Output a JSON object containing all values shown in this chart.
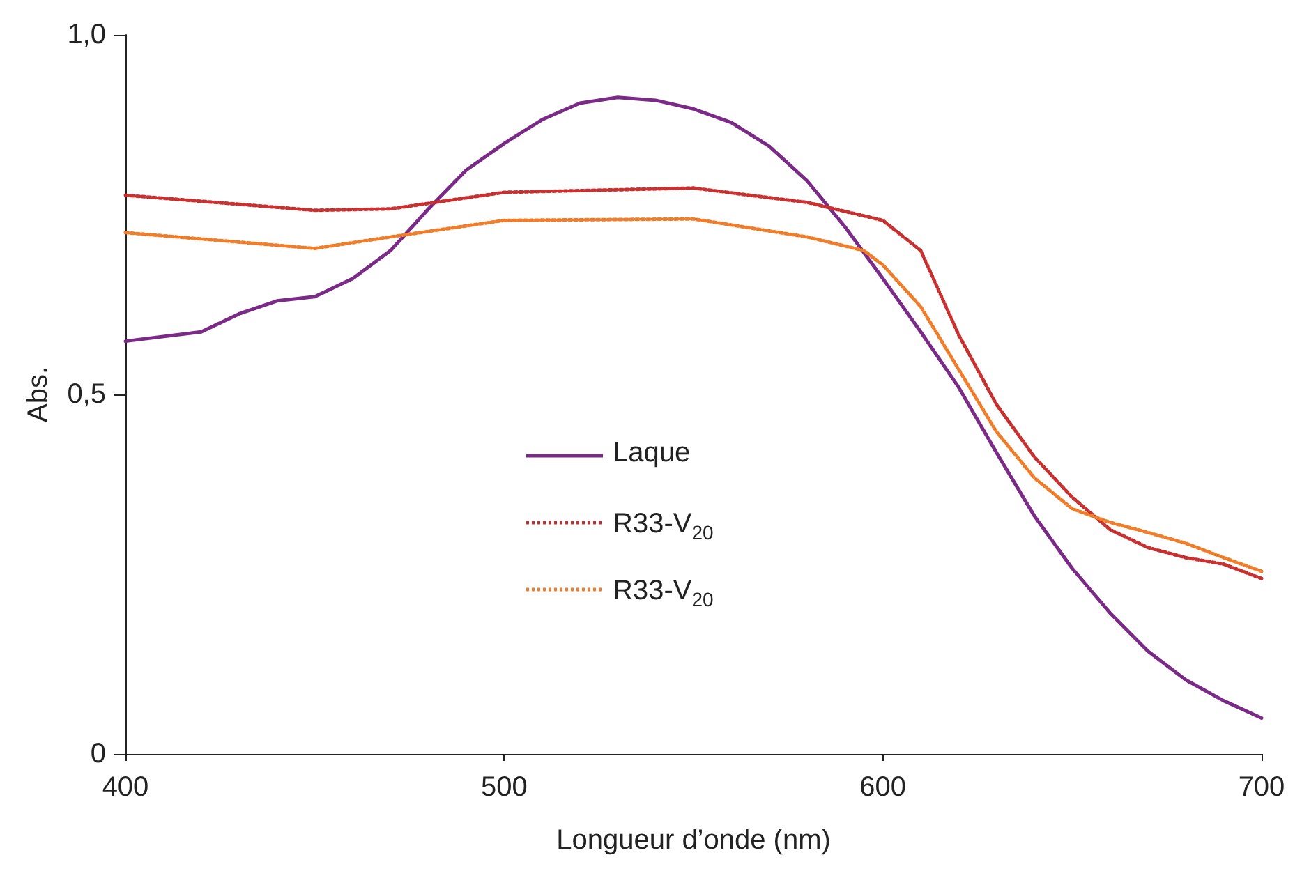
{
  "chart_data": {
    "type": "line",
    "xlabel": "Longueur d’onde (nm)",
    "ylabel": "Abs.",
    "xlim": [
      400,
      700
    ],
    "xticks": [
      400,
      500,
      600,
      700
    ],
    "ylim": [
      0,
      1
    ],
    "yticks": [
      {
        "value": 0,
        "label": "0"
      },
      {
        "value": 0.5,
        "label": "0,5"
      },
      {
        "value": 1,
        "label": "1,0"
      }
    ],
    "grid": false,
    "legend": "center",
    "marker": "none",
    "series": [
      {
        "name": "Laque",
        "color": "#7b2a87",
        "line_style": "solid",
        "x": [
          400,
          420,
          430,
          440,
          450,
          460,
          470,
          480,
          490,
          500,
          510,
          520,
          530,
          540,
          550,
          560,
          570,
          580,
          590,
          600,
          610,
          620,
          630,
          640,
          650,
          660,
          670,
          680,
          690,
          700
        ],
        "values": [
          0.574,
          0.587,
          0.612,
          0.63,
          0.636,
          0.661,
          0.7,
          0.758,
          0.812,
          0.849,
          0.882,
          0.905,
          0.913,
          0.909,
          0.897,
          0.878,
          0.845,
          0.797,
          0.733,
          0.661,
          0.587,
          0.51,
          0.419,
          0.331,
          0.258,
          0.196,
          0.143,
          0.103,
          0.074,
          0.05
        ]
      },
      {
        "name": "R33-V$_{20}$",
        "color": "#c8312f",
        "line_style": "dotted",
        "x": [
          400,
          450,
          470,
          500,
          550,
          580,
          600,
          610,
          620,
          630,
          640,
          650,
          660,
          670,
          680,
          690,
          700
        ],
        "values": [
          0.777,
          0.756,
          0.758,
          0.781,
          0.787,
          0.767,
          0.742,
          0.7,
          0.583,
          0.486,
          0.413,
          0.357,
          0.312,
          0.287,
          0.273,
          0.264,
          0.244
        ]
      },
      {
        "name": "R33-V$_{20}$",
        "color": "#f07d2a",
        "line_style": "dotted",
        "x": [
          400,
          450,
          470,
          500,
          550,
          580,
          595,
          600,
          610,
          620,
          630,
          640,
          650,
          660,
          670,
          680,
          690,
          700
        ],
        "values": [
          0.725,
          0.703,
          0.719,
          0.742,
          0.744,
          0.719,
          0.7,
          0.68,
          0.622,
          0.535,
          0.448,
          0.384,
          0.341,
          0.322,
          0.308,
          0.293,
          0.273,
          0.254
        ]
      }
    ]
  }
}
